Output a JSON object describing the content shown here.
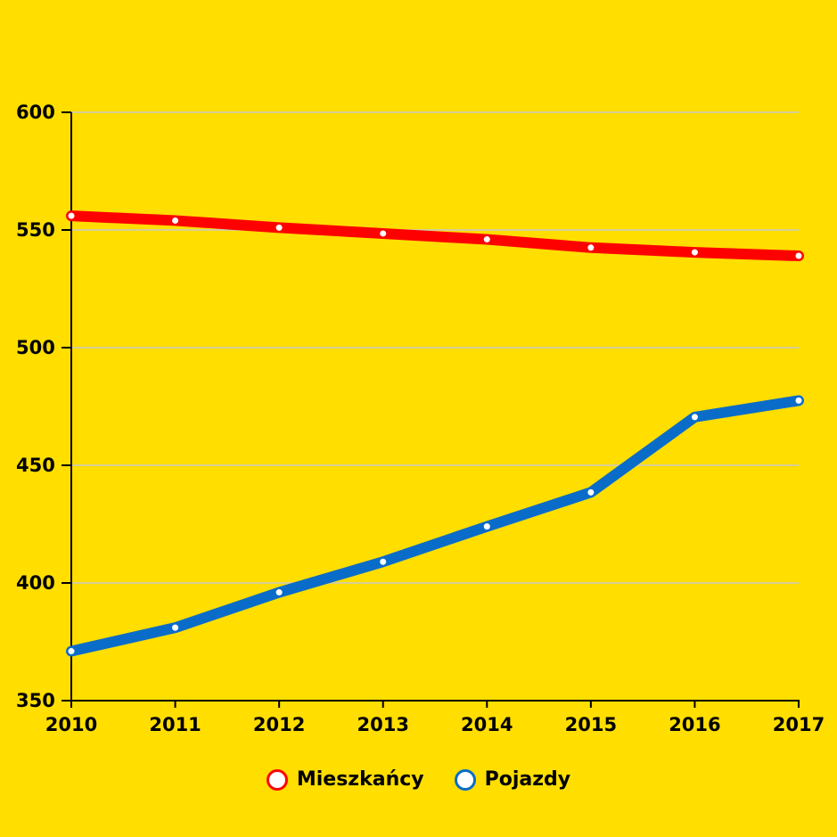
{
  "chart_data": {
    "type": "line",
    "x": [
      "2010",
      "2011",
      "2012",
      "2013",
      "2014",
      "2015",
      "2016",
      "2017"
    ],
    "ylim": [
      350,
      600
    ],
    "yticks": [
      350,
      400,
      450,
      500,
      550,
      600
    ],
    "grid": true,
    "legend_position": "bottom",
    "series": [
      {
        "name": "Mieszkańcy",
        "color": "#FF0000",
        "values": [
          556,
          554,
          551,
          548.5,
          546,
          542.5,
          540.5,
          539
        ]
      },
      {
        "name": "Pojazdy",
        "color": "#0A6CC9",
        "values": [
          371,
          381,
          396,
          409,
          424,
          438.5,
          470.5,
          477.5
        ]
      }
    ]
  }
}
